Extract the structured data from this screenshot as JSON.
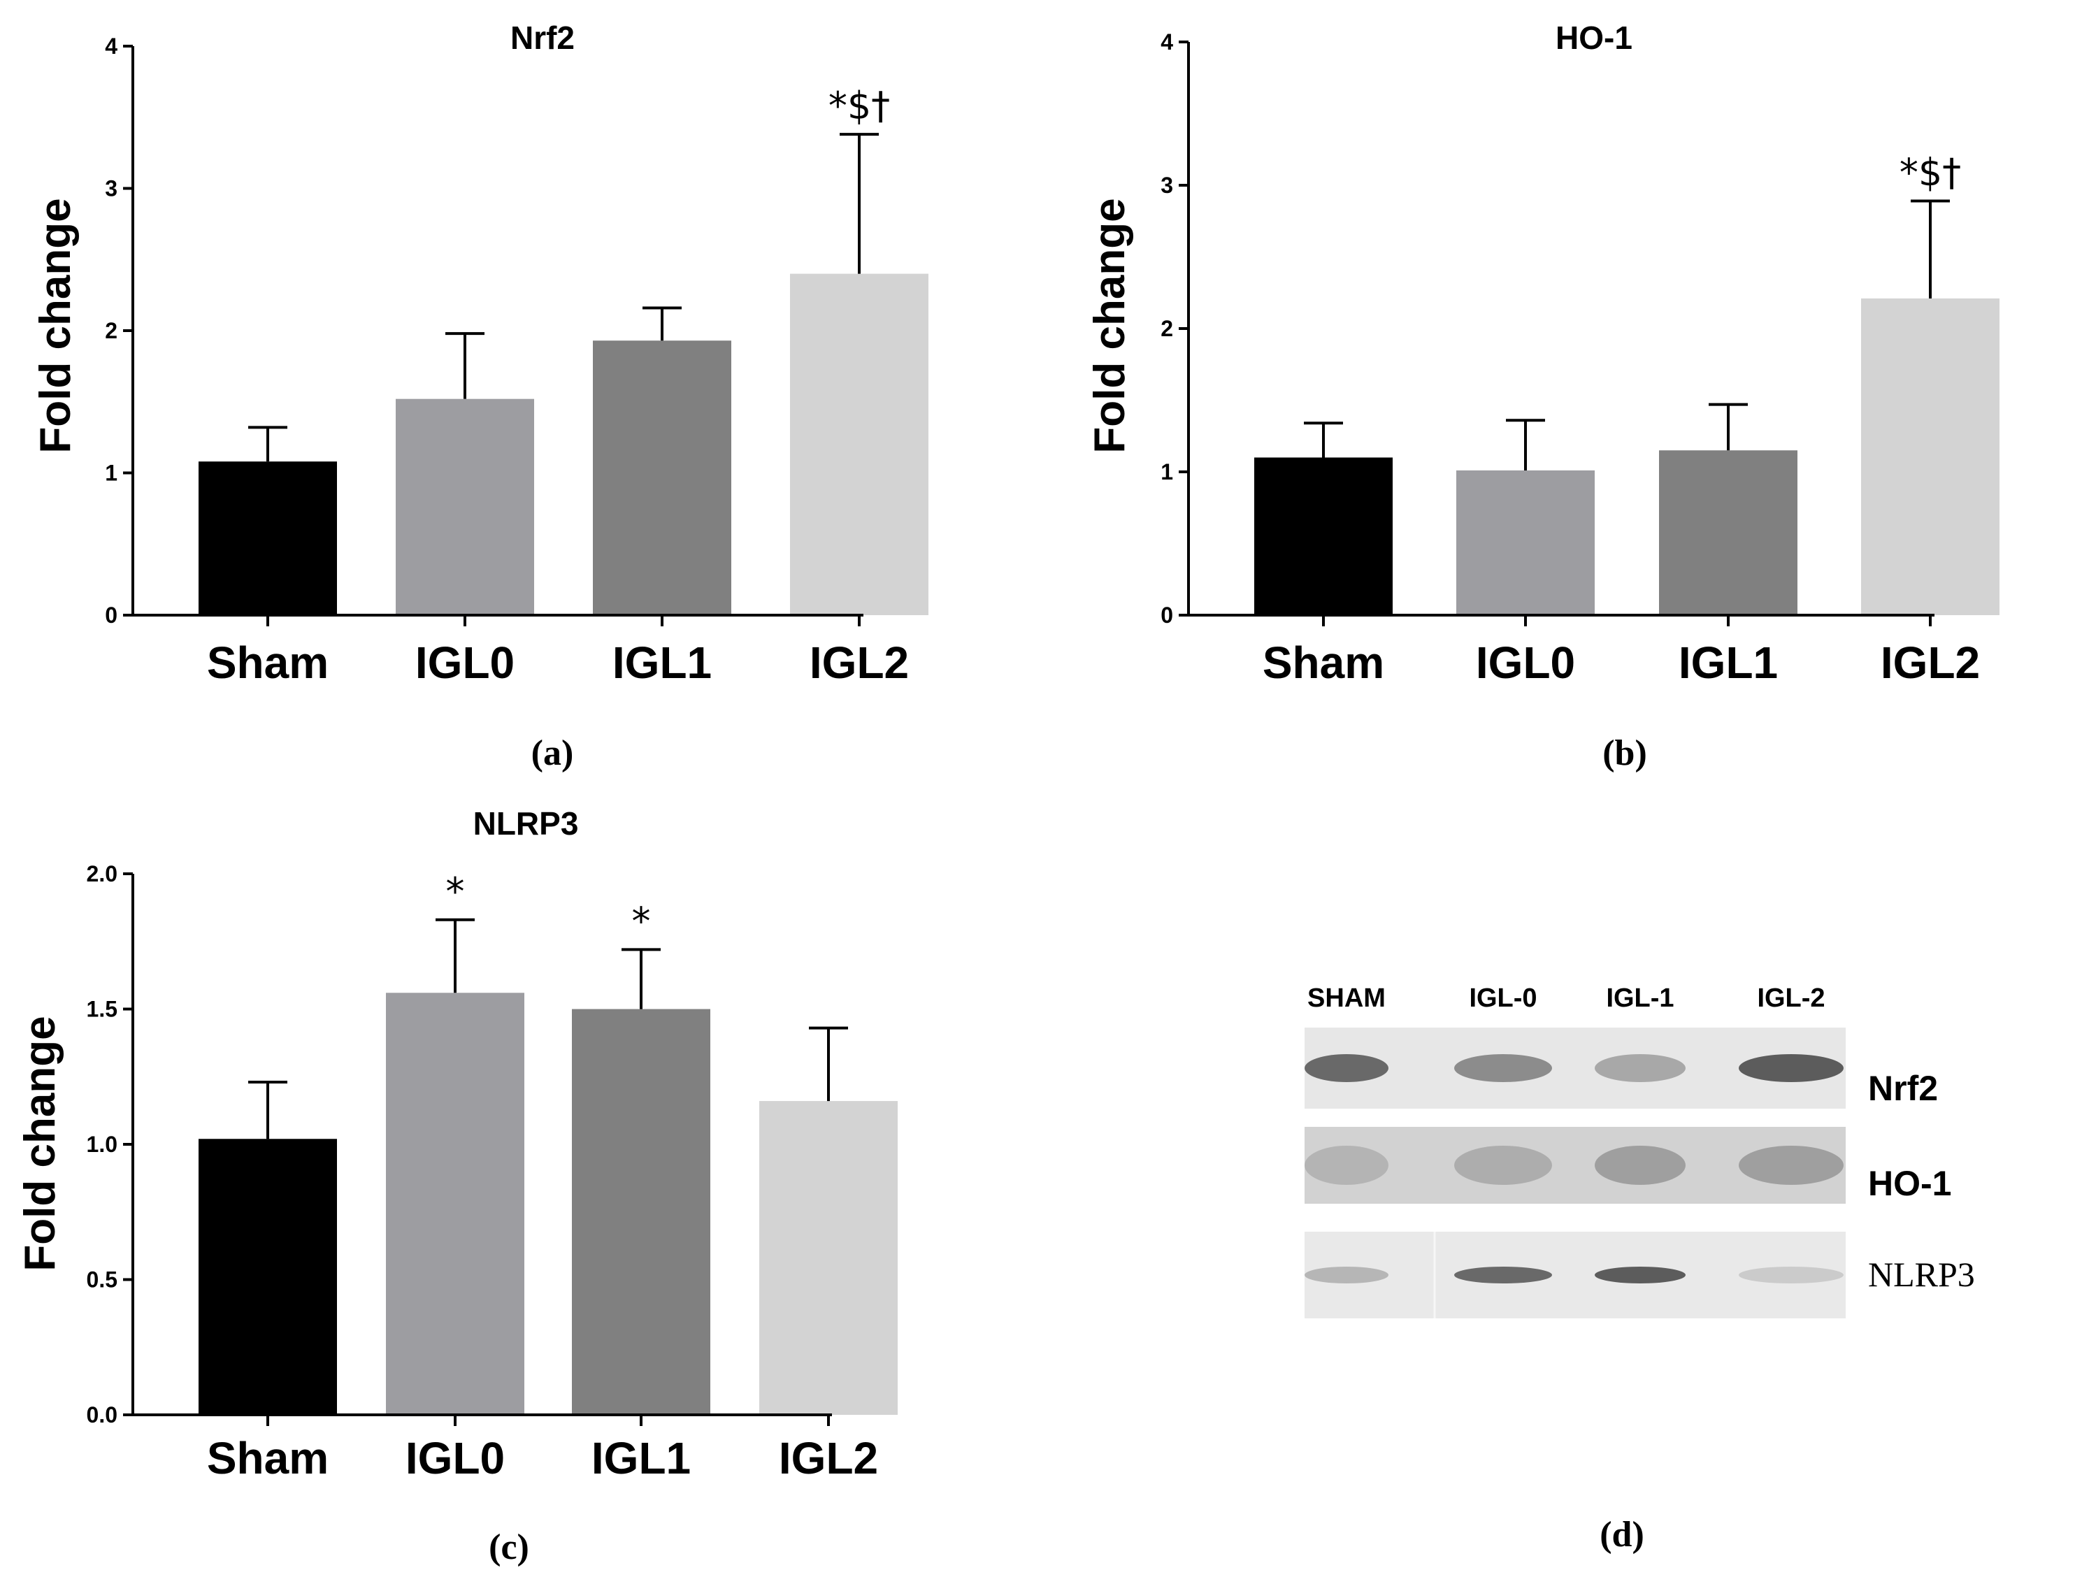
{
  "chart_data": [
    {
      "type": "bar",
      "panel": "(a)",
      "title": "Nrf2",
      "ylabel": "Fold change",
      "xlabel": "",
      "categories": [
        "Sham",
        "IGL0",
        "IGL1",
        "IGL2"
      ],
      "values": [
        1.08,
        1.52,
        1.93,
        2.4
      ],
      "errors": [
        0.24,
        0.46,
        0.23,
        0.98
      ],
      "significance": [
        "",
        "",
        "",
        "*$†"
      ],
      "colors": [
        "#000000",
        "#9d9da1",
        "#808080",
        "#d3d3d3"
      ],
      "ylim": [
        0,
        4
      ],
      "yticks": [
        0,
        1,
        2,
        3,
        4
      ],
      "ytick_labels": [
        "0",
        "1",
        "2",
        "3",
        "4"
      ]
    },
    {
      "type": "bar",
      "panel": "(b)",
      "title": "HO-1",
      "ylabel": "Fold change",
      "xlabel": "",
      "categories": [
        "Sham",
        "IGL0",
        "IGL1",
        "IGL2"
      ],
      "values": [
        1.1,
        1.01,
        1.15,
        2.21
      ],
      "errors": [
        0.24,
        0.35,
        0.32,
        0.68
      ],
      "significance": [
        "",
        "",
        "",
        "*$†"
      ],
      "colors": [
        "#000000",
        "#9d9da1",
        "#808080",
        "#d3d3d3"
      ],
      "ylim": [
        0,
        4
      ],
      "yticks": [
        0,
        1,
        2,
        3,
        4
      ],
      "ytick_labels": [
        "0",
        "1",
        "2",
        "3",
        "4"
      ]
    },
    {
      "type": "bar",
      "panel": "(c)",
      "title": "NLRP3",
      "ylabel": "Fold change",
      "xlabel": "",
      "categories": [
        "Sham",
        "IGL0",
        "IGL1",
        "IGL2"
      ],
      "values": [
        1.02,
        1.56,
        1.5,
        1.16
      ],
      "errors": [
        0.21,
        0.27,
        0.22,
        0.27
      ],
      "significance": [
        "",
        "*",
        "*",
        ""
      ],
      "colors": [
        "#000000",
        "#9d9da1",
        "#808080",
        "#d3d3d3"
      ],
      "ylim": [
        0,
        2.0
      ],
      "yticks": [
        0,
        0.5,
        1.0,
        1.5,
        2.0
      ],
      "ytick_labels": [
        "0.0",
        "0.5",
        "1.0",
        "1.5",
        "2.0"
      ]
    }
  ],
  "western_blot": {
    "panel": "(d)",
    "lanes": [
      "SHAM",
      "IGL-0",
      "IGL-1",
      "IGL-2"
    ],
    "proteins": [
      "Nrf2",
      "HO-1",
      "NLRP3"
    ],
    "band_intensity": [
      [
        0.8,
        0.55,
        0.35,
        0.9
      ],
      [
        0.25,
        0.3,
        0.4,
        0.4
      ],
      [
        0.25,
        0.8,
        0.9,
        0.1
      ]
    ]
  }
}
